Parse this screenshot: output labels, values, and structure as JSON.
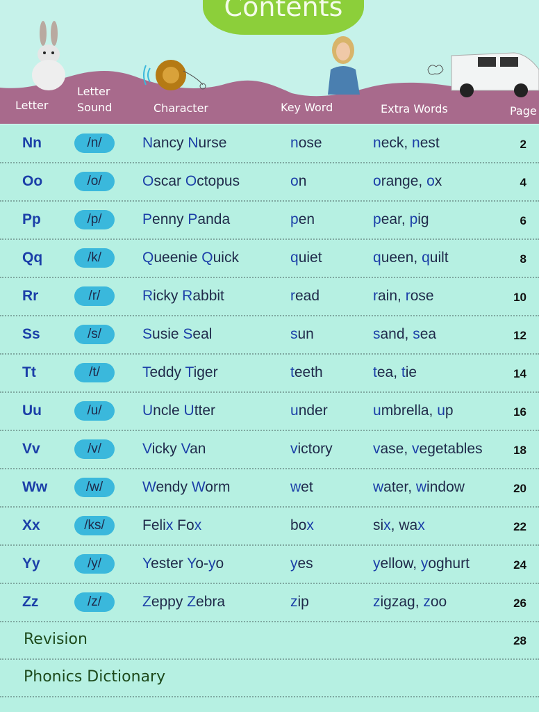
{
  "title": "Contents",
  "headers": {
    "letter": "Letter",
    "letter_sound_1": "Letter",
    "letter_sound_2": "Sound",
    "character": "Character",
    "key_word": "Key Word",
    "extra_words": "Extra Words",
    "page": "Page"
  },
  "colors": {
    "header_band": "#a86a8c",
    "title_blob": "#8ccf3a",
    "sound_pill": "#3ab8dc",
    "highlight": "#1b3fa8",
    "background": "#b6f0e2"
  },
  "rows": [
    {
      "letter": "Nn",
      "sound": "/n/",
      "character": "Nancy Nurse",
      "key_word": "nose",
      "extra_words": "neck, nest",
      "page": "2"
    },
    {
      "letter": "Oo",
      "sound": "/o/",
      "character": "Oscar Octopus",
      "key_word": "on",
      "extra_words": "orange, ox",
      "page": "4"
    },
    {
      "letter": "Pp",
      "sound": "/p/",
      "character": "Penny Panda",
      "key_word": "pen",
      "extra_words": "pear, pig",
      "page": "6"
    },
    {
      "letter": "Qq",
      "sound": "/k/",
      "character": "Queenie Quick",
      "key_word": "quiet",
      "extra_words": "queen, quilt",
      "page": "8"
    },
    {
      "letter": "Rr",
      "sound": "/r/",
      "character": "Ricky Rabbit",
      "key_word": "read",
      "extra_words": "rain, rose",
      "page": "10"
    },
    {
      "letter": "Ss",
      "sound": "/s/",
      "character": "Susie Seal",
      "key_word": "sun",
      "extra_words": "sand, sea",
      "page": "12"
    },
    {
      "letter": "Tt",
      "sound": "/t/",
      "character": "Teddy Tiger",
      "key_word": "teeth",
      "extra_words": "tea, tie",
      "page": "14"
    },
    {
      "letter": "Uu",
      "sound": "/u/",
      "character": "Uncle Utter",
      "key_word": "under",
      "extra_words": "umbrella, up",
      "page": "16"
    },
    {
      "letter": "Vv",
      "sound": "/v/",
      "character": "Vicky Van",
      "key_word": "victory",
      "extra_words": "vase, vegetables",
      "page": "18"
    },
    {
      "letter": "Ww",
      "sound": "/w/",
      "character": "Wendy Worm",
      "key_word": "wet",
      "extra_words": "water, window",
      "page": "20"
    },
    {
      "letter": "Xx",
      "sound": "/ks/",
      "character": "Felix Fox",
      "key_word": "box",
      "extra_words": "six, wax",
      "page": "22"
    },
    {
      "letter": "Yy",
      "sound": "/y/",
      "character": "Yester Yo-yo",
      "key_word": "yes",
      "extra_words": "yellow, yoghurt",
      "page": "24"
    },
    {
      "letter": "Zz",
      "sound": "/z/",
      "character": "Zeppy Zebra",
      "key_word": "zip",
      "extra_words": "zigzag, zoo",
      "page": "26"
    }
  ],
  "sections": [
    {
      "label": "Revision",
      "page": "28"
    },
    {
      "label": "Phonics Dictionary",
      "page": ""
    }
  ],
  "icons": [
    "rabbit-picture",
    "yoyo-picture",
    "girl-picture",
    "van-picture"
  ]
}
